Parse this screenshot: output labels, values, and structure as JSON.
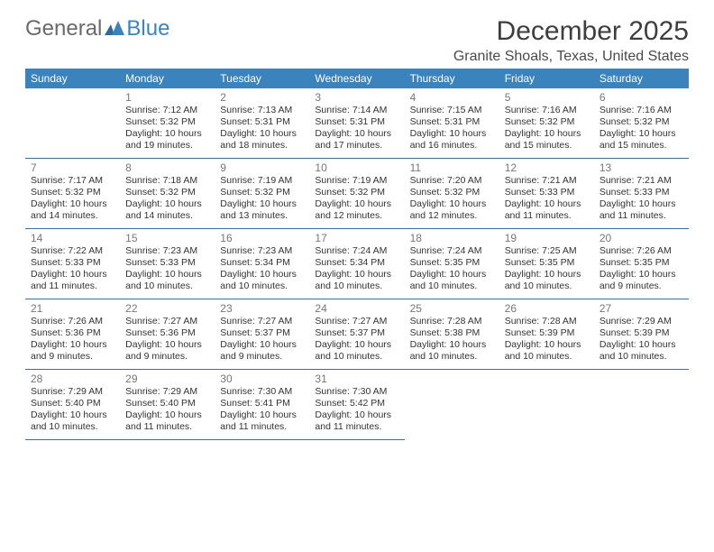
{
  "logo": {
    "text1": "General",
    "text2": "Blue"
  },
  "header": {
    "title": "December 2025",
    "location": "Granite Shoals, Texas, United States"
  },
  "colors": {
    "header_bg": "#3b83bd",
    "header_text": "#ffffff",
    "border": "#3b6f99",
    "daynum": "#777777",
    "body_text": "#333333"
  },
  "day_labels": [
    "Sunday",
    "Monday",
    "Tuesday",
    "Wednesday",
    "Thursday",
    "Friday",
    "Saturday"
  ],
  "first_weekday_index": 1,
  "days": [
    {
      "n": 1,
      "sunrise": "7:12 AM",
      "sunset": "5:32 PM",
      "daylight": "10 hours and 19 minutes."
    },
    {
      "n": 2,
      "sunrise": "7:13 AM",
      "sunset": "5:31 PM",
      "daylight": "10 hours and 18 minutes."
    },
    {
      "n": 3,
      "sunrise": "7:14 AM",
      "sunset": "5:31 PM",
      "daylight": "10 hours and 17 minutes."
    },
    {
      "n": 4,
      "sunrise": "7:15 AM",
      "sunset": "5:31 PM",
      "daylight": "10 hours and 16 minutes."
    },
    {
      "n": 5,
      "sunrise": "7:16 AM",
      "sunset": "5:32 PM",
      "daylight": "10 hours and 15 minutes."
    },
    {
      "n": 6,
      "sunrise": "7:16 AM",
      "sunset": "5:32 PM",
      "daylight": "10 hours and 15 minutes."
    },
    {
      "n": 7,
      "sunrise": "7:17 AM",
      "sunset": "5:32 PM",
      "daylight": "10 hours and 14 minutes."
    },
    {
      "n": 8,
      "sunrise": "7:18 AM",
      "sunset": "5:32 PM",
      "daylight": "10 hours and 14 minutes."
    },
    {
      "n": 9,
      "sunrise": "7:19 AM",
      "sunset": "5:32 PM",
      "daylight": "10 hours and 13 minutes."
    },
    {
      "n": 10,
      "sunrise": "7:19 AM",
      "sunset": "5:32 PM",
      "daylight": "10 hours and 12 minutes."
    },
    {
      "n": 11,
      "sunrise": "7:20 AM",
      "sunset": "5:32 PM",
      "daylight": "10 hours and 12 minutes."
    },
    {
      "n": 12,
      "sunrise": "7:21 AM",
      "sunset": "5:33 PM",
      "daylight": "10 hours and 11 minutes."
    },
    {
      "n": 13,
      "sunrise": "7:21 AM",
      "sunset": "5:33 PM",
      "daylight": "10 hours and 11 minutes."
    },
    {
      "n": 14,
      "sunrise": "7:22 AM",
      "sunset": "5:33 PM",
      "daylight": "10 hours and 11 minutes."
    },
    {
      "n": 15,
      "sunrise": "7:23 AM",
      "sunset": "5:33 PM",
      "daylight": "10 hours and 10 minutes."
    },
    {
      "n": 16,
      "sunrise": "7:23 AM",
      "sunset": "5:34 PM",
      "daylight": "10 hours and 10 minutes."
    },
    {
      "n": 17,
      "sunrise": "7:24 AM",
      "sunset": "5:34 PM",
      "daylight": "10 hours and 10 minutes."
    },
    {
      "n": 18,
      "sunrise": "7:24 AM",
      "sunset": "5:35 PM",
      "daylight": "10 hours and 10 minutes."
    },
    {
      "n": 19,
      "sunrise": "7:25 AM",
      "sunset": "5:35 PM",
      "daylight": "10 hours and 10 minutes."
    },
    {
      "n": 20,
      "sunrise": "7:26 AM",
      "sunset": "5:35 PM",
      "daylight": "10 hours and 9 minutes."
    },
    {
      "n": 21,
      "sunrise": "7:26 AM",
      "sunset": "5:36 PM",
      "daylight": "10 hours and 9 minutes."
    },
    {
      "n": 22,
      "sunrise": "7:27 AM",
      "sunset": "5:36 PM",
      "daylight": "10 hours and 9 minutes."
    },
    {
      "n": 23,
      "sunrise": "7:27 AM",
      "sunset": "5:37 PM",
      "daylight": "10 hours and 9 minutes."
    },
    {
      "n": 24,
      "sunrise": "7:27 AM",
      "sunset": "5:37 PM",
      "daylight": "10 hours and 10 minutes."
    },
    {
      "n": 25,
      "sunrise": "7:28 AM",
      "sunset": "5:38 PM",
      "daylight": "10 hours and 10 minutes."
    },
    {
      "n": 26,
      "sunrise": "7:28 AM",
      "sunset": "5:39 PM",
      "daylight": "10 hours and 10 minutes."
    },
    {
      "n": 27,
      "sunrise": "7:29 AM",
      "sunset": "5:39 PM",
      "daylight": "10 hours and 10 minutes."
    },
    {
      "n": 28,
      "sunrise": "7:29 AM",
      "sunset": "5:40 PM",
      "daylight": "10 hours and 10 minutes."
    },
    {
      "n": 29,
      "sunrise": "7:29 AM",
      "sunset": "5:40 PM",
      "daylight": "10 hours and 11 minutes."
    },
    {
      "n": 30,
      "sunrise": "7:30 AM",
      "sunset": "5:41 PM",
      "daylight": "10 hours and 11 minutes."
    },
    {
      "n": 31,
      "sunrise": "7:30 AM",
      "sunset": "5:42 PM",
      "daylight": "10 hours and 11 minutes."
    }
  ],
  "labels": {
    "sunrise": "Sunrise:",
    "sunset": "Sunset:",
    "daylight": "Daylight:"
  }
}
